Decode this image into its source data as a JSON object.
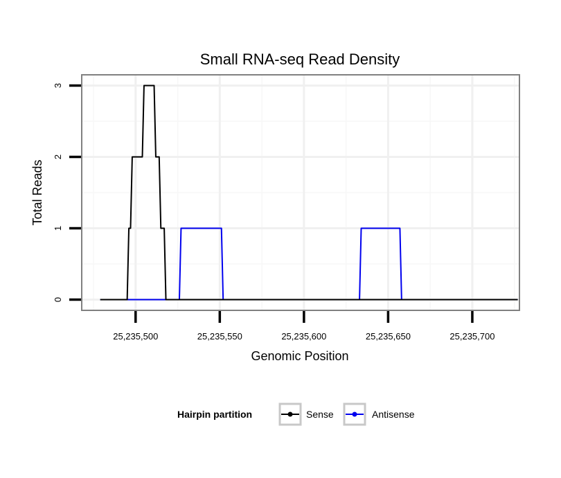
{
  "chart_data": {
    "type": "line",
    "title": "Small RNA-seq Read Density",
    "xlabel": "Genomic Position",
    "ylabel": "Total Reads",
    "xlim": [
      25235468,
      25235728
    ],
    "ylim": [
      -0.15,
      3.15
    ],
    "x_ticks": [
      25235500,
      25235550,
      25235600,
      25235650,
      25235700
    ],
    "x_tick_labels": [
      "25,235,500",
      "25,235,550",
      "25,235,600",
      "25,235,650",
      "25,235,700"
    ],
    "y_ticks": [
      0,
      1,
      2,
      3
    ],
    "y_tick_labels": [
      "0",
      "1",
      "2",
      "3"
    ],
    "grid": true,
    "legend": {
      "title": "Hairpin partition",
      "position": "bottom",
      "entries": [
        "Sense",
        "Antisense"
      ]
    },
    "series": [
      {
        "name": "Sense",
        "color": "#000000",
        "points": [
          [
            25235479,
            0
          ],
          [
            25235495,
            0
          ],
          [
            25235496,
            1
          ],
          [
            25235497,
            1
          ],
          [
            25235498,
            2
          ],
          [
            25235504,
            2
          ],
          [
            25235505,
            3
          ],
          [
            25235511,
            3
          ],
          [
            25235512,
            2
          ],
          [
            25235514,
            2
          ],
          [
            25235515,
            1
          ],
          [
            25235517,
            1
          ],
          [
            25235518,
            0
          ],
          [
            25235727,
            0
          ]
        ]
      },
      {
        "name": "Antisense",
        "color": "#0000ee",
        "points": [
          [
            25235479,
            0
          ],
          [
            25235526,
            0
          ],
          [
            25235527,
            1
          ],
          [
            25235551,
            1
          ],
          [
            25235552,
            0
          ],
          [
            25235633,
            0
          ],
          [
            25235634,
            1
          ],
          [
            25235657,
            1
          ],
          [
            25235658,
            0
          ],
          [
            25235727,
            0
          ]
        ]
      }
    ]
  }
}
